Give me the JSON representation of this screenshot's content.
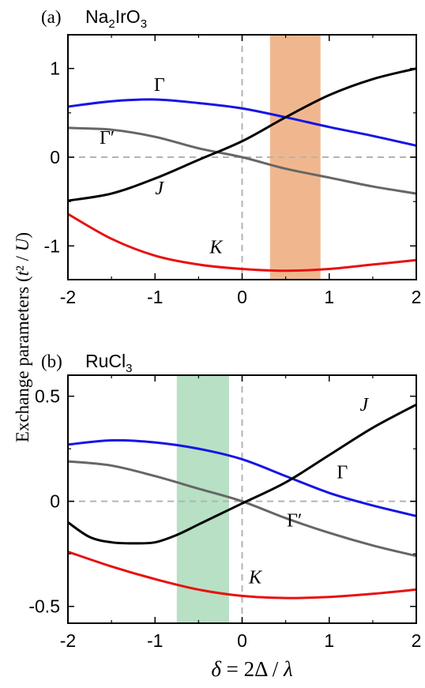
{
  "ylabel": "Exchange parameters (t² / U)",
  "xlabel": "δ = 2Δ / λ",
  "panels": [
    {
      "panel_label": "(a)",
      "material_parts": [
        "Na",
        "2",
        "IrO",
        "3"
      ]
    },
    {
      "panel_label": "(b)",
      "material_parts": [
        "RuCl",
        "3"
      ]
    }
  ],
  "chart_data": [
    {
      "type": "line",
      "xlim": [
        -2,
        2
      ],
      "ylim": [
        -1.38,
        1.38
      ],
      "xticks": [
        "-2",
        "-1",
        "0",
        "1",
        "2"
      ],
      "yticks": [
        "-1",
        "0",
        "1"
      ],
      "ytick_values": [
        -1,
        0,
        1
      ],
      "xtick_values": [
        -2,
        -1,
        0,
        1,
        2
      ],
      "grid": false,
      "reference_lines": {
        "x": 0,
        "y": 0,
        "style": "dashed",
        "color": "#b3b3b3"
      },
      "shaded_region": {
        "x": [
          0.32,
          0.9
        ],
        "color": "#f0b78f"
      },
      "series": [
        {
          "name": "Γ",
          "color": "#1515e6",
          "x": [
            -2,
            -1.5,
            -1,
            -0.5,
            0,
            0.5,
            1,
            1.5,
            2
          ],
          "y": [
            0.57,
            0.63,
            0.65,
            0.61,
            0.55,
            0.45,
            0.34,
            0.24,
            0.13
          ]
        },
        {
          "name": "Γ′",
          "color": "#666666",
          "x": [
            -2,
            -1.5,
            -1,
            -0.5,
            0,
            0.5,
            1,
            1.5,
            2
          ],
          "y": [
            0.33,
            0.31,
            0.23,
            0.1,
            0.0,
            -0.13,
            -0.23,
            -0.33,
            -0.41
          ]
        },
        {
          "name": "J",
          "color": "#000000",
          "x": [
            -2,
            -1.5,
            -1,
            -0.5,
            0,
            0.5,
            1,
            1.5,
            2
          ],
          "y": [
            -0.49,
            -0.41,
            -0.24,
            -0.03,
            0.18,
            0.45,
            0.7,
            0.88,
            1.0
          ]
        },
        {
          "name": "K",
          "color": "#e81010",
          "x": [
            -2,
            -1.5,
            -1,
            -0.5,
            0,
            0.5,
            1,
            1.5,
            2
          ],
          "y": [
            -0.64,
            -0.92,
            -1.11,
            -1.21,
            -1.26,
            -1.28,
            -1.26,
            -1.21,
            -1.16
          ]
        }
      ]
    },
    {
      "type": "line",
      "xlim": [
        -2,
        2
      ],
      "ylim": [
        -0.58,
        0.6
      ],
      "xticks": [
        "-2",
        "-1",
        "0",
        "1",
        "2"
      ],
      "yticks": [
        "-0.5",
        "0",
        "0.5"
      ],
      "ytick_values": [
        -0.5,
        0,
        0.5
      ],
      "xtick_values": [
        -2,
        -1,
        0,
        1,
        2
      ],
      "grid": false,
      "reference_lines": {
        "x": 0,
        "y": 0,
        "style": "dashed",
        "color": "#b3b3b3"
      },
      "shaded_region": {
        "x": [
          -0.75,
          -0.15
        ],
        "color": "#b7e0c4"
      },
      "series": [
        {
          "name": "Γ",
          "color": "#1515e6",
          "x": [
            -2,
            -1.5,
            -1,
            -0.5,
            0,
            0.5,
            1,
            1.5,
            2
          ],
          "y": [
            0.27,
            0.29,
            0.28,
            0.25,
            0.2,
            0.12,
            0.04,
            -0.02,
            -0.07
          ]
        },
        {
          "name": "Γ′",
          "color": "#666666",
          "x": [
            -2,
            -1.5,
            -1,
            -0.5,
            0,
            0.5,
            1,
            1.5,
            2
          ],
          "y": [
            0.19,
            0.17,
            0.12,
            0.06,
            0.0,
            -0.08,
            -0.15,
            -0.21,
            -0.26
          ]
        },
        {
          "name": "J",
          "color": "#000000",
          "x": [
            -2,
            -1.75,
            -1.5,
            -1.25,
            -1,
            -0.75,
            -0.5,
            -0.25,
            0,
            0.5,
            1,
            1.5,
            2
          ],
          "y": [
            -0.1,
            -0.17,
            -0.195,
            -0.2,
            -0.195,
            -0.16,
            -0.11,
            -0.06,
            -0.01,
            0.09,
            0.22,
            0.35,
            0.46
          ]
        },
        {
          "name": "K",
          "color": "#e81010",
          "x": [
            -2,
            -1.5,
            -1,
            -0.5,
            0,
            0.5,
            1,
            1.5,
            2
          ],
          "y": [
            -0.24,
            -0.31,
            -0.37,
            -0.42,
            -0.45,
            -0.46,
            -0.455,
            -0.44,
            -0.42
          ]
        }
      ]
    }
  ]
}
